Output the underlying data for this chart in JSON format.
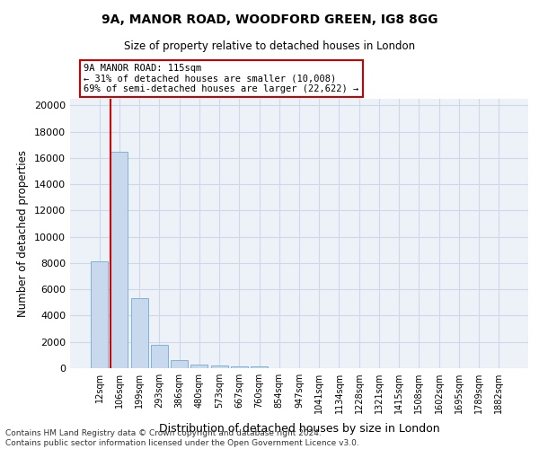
{
  "title_line1": "9A, MANOR ROAD, WOODFORD GREEN, IG8 8GG",
  "title_line2": "Size of property relative to detached houses in London",
  "xlabel": "Distribution of detached houses by size in London",
  "ylabel": "Number of detached properties",
  "categories": [
    "12sqm",
    "106sqm",
    "199sqm",
    "293sqm",
    "386sqm",
    "480sqm",
    "573sqm",
    "667sqm",
    "760sqm",
    "854sqm",
    "947sqm",
    "1041sqm",
    "1134sqm",
    "1228sqm",
    "1321sqm",
    "1415sqm",
    "1508sqm",
    "1602sqm",
    "1695sqm",
    "1789sqm",
    "1882sqm"
  ],
  "values": [
    8100,
    16500,
    5300,
    1750,
    620,
    290,
    185,
    140,
    115,
    0,
    0,
    0,
    0,
    0,
    0,
    0,
    0,
    0,
    0,
    0,
    0
  ],
  "bar_color": "#c8d9ee",
  "bar_edge_color": "#7fb3d8",
  "vline_color": "#cc0000",
  "annotation_text": "9A MANOR ROAD: 115sqm\n← 31% of detached houses are smaller (10,008)\n69% of semi-detached houses are larger (22,622) →",
  "annotation_box_color": "#ffffff",
  "annotation_box_edge_color": "#cc0000",
  "ylim": [
    0,
    20500
  ],
  "yticks": [
    0,
    2000,
    4000,
    6000,
    8000,
    10000,
    12000,
    14000,
    16000,
    18000,
    20000
  ],
  "footer_line1": "Contains HM Land Registry data © Crown copyright and database right 2024.",
  "footer_line2": "Contains public sector information licensed under the Open Government Licence v3.0.",
  "grid_color": "#d0d8e8",
  "background_color": "#edf2f9"
}
